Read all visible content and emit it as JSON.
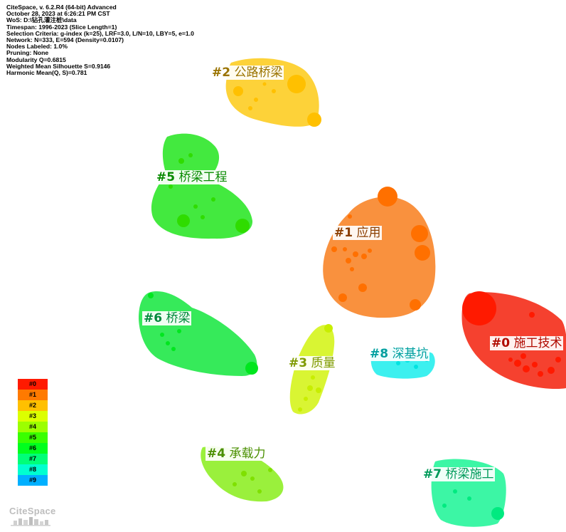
{
  "info_lines": [
    "CiteSpace, v. 6.2.R4 (64-bit) Advanced",
    "October 28, 2023 at 6:26:21 PM CST",
    "WoS: D:\\钻孔灌注桩\\data",
    "Timespan: 1996-2023 (Slice Length=1)",
    "Selection Criteria: g-index (k=25), LRF=3.0, L/N=10, LBY=5, e=1.0",
    "Network: N=333, E=594 (Density=0.0107)",
    "Nodes Labeled: 1.0%",
    "Pruning: None",
    "Modularity Q=0.6815",
    "Weighted Mean Silhouette S=0.9146",
    "Harmonic Mean(Q, S)=0.781"
  ],
  "clusters": [
    {
      "id": "#0",
      "label": "施工技术",
      "color": "#f5412f",
      "text_color": "#b00a00"
    },
    {
      "id": "#1",
      "label": "应用",
      "color": "#f9913e",
      "text_color": "#8a3d00"
    },
    {
      "id": "#2",
      "label": "公路桥梁",
      "color": "#fdcf36",
      "text_color": "#9a7300"
    },
    {
      "id": "#3",
      "label": "质量",
      "color": "#d9f533",
      "text_color": "#7e9a00"
    },
    {
      "id": "#4",
      "label": "承载力",
      "color": "#9af03c",
      "text_color": "#4a8f00"
    },
    {
      "id": "#5",
      "label": "桥梁工程",
      "color": "#43e93f",
      "text_color": "#078a00"
    },
    {
      "id": "#6",
      "label": "桥梁",
      "color": "#36ea5a",
      "text_color": "#00893c"
    },
    {
      "id": "#7",
      "label": "桥梁施工",
      "color": "#3cf6a5",
      "text_color": "#009a5a"
    },
    {
      "id": "#8",
      "label": "深基坑",
      "color": "#3cf0ef",
      "text_color": "#009f9f"
    }
  ],
  "legend": [
    {
      "label": "#0",
      "color": "#ff1a00"
    },
    {
      "label": "#1",
      "color": "#ff7a00"
    },
    {
      "label": "#2",
      "color": "#ffc000"
    },
    {
      "label": "#3",
      "color": "#dcff00"
    },
    {
      "label": "#4",
      "color": "#9cff00"
    },
    {
      "label": "#5",
      "color": "#3aff00"
    },
    {
      "label": "#6",
      "color": "#00ff1e"
    },
    {
      "label": "#7",
      "color": "#00ff78"
    },
    {
      "label": "#8",
      "color": "#00ffd0"
    },
    {
      "label": "#9",
      "color": "#00b0ff"
    }
  ],
  "logo": {
    "text": "CiteSpace"
  }
}
